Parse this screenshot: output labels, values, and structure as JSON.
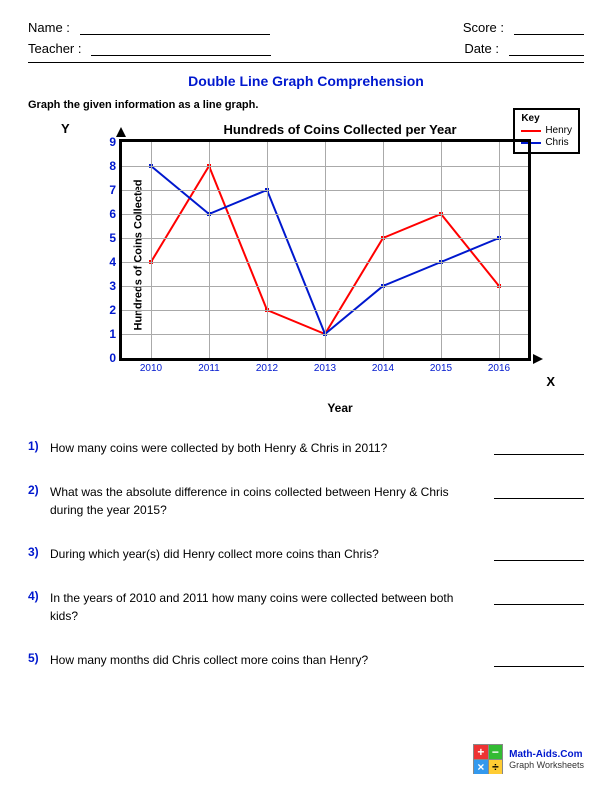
{
  "header": {
    "name_label": "Name :",
    "teacher_label": "Teacher :",
    "score_label": "Score :",
    "date_label": "Date :"
  },
  "title": "Double Line Graph Comprehension",
  "instruction": "Graph the given information as a line graph.",
  "legend": {
    "title": "Key",
    "series": [
      {
        "label": "Henry",
        "color": "#ff0000"
      },
      {
        "label": "Chris",
        "color": "#0018ce"
      }
    ]
  },
  "chart": {
    "type": "line",
    "title": "Hundreds of Coins Collected per Year",
    "xlabel": "Year",
    "ylabel": "Hundreds of Coins Collected",
    "y_axis_letter": "Y",
    "x_axis_letter": "X",
    "ylim": [
      0,
      9
    ],
    "ytick_step": 1,
    "yticks": [
      0,
      1,
      2,
      3,
      4,
      5,
      6,
      7,
      8,
      9
    ],
    "categories": [
      "2010",
      "2011",
      "2012",
      "2013",
      "2014",
      "2015",
      "2016"
    ],
    "grid_color": "#aaaaaa",
    "border_color": "#000000",
    "border_width": 3,
    "background_color": "#ffffff",
    "tick_color": "#0018ce",
    "marker_size": 4,
    "line_width": 2,
    "series": [
      {
        "name": "Henry",
        "color": "#ff0000",
        "values": [
          4,
          8,
          2,
          1,
          5,
          6,
          3
        ]
      },
      {
        "name": "Chris",
        "color": "#0018ce",
        "values": [
          8,
          6,
          7,
          1,
          3,
          4,
          5
        ]
      }
    ]
  },
  "questions": [
    {
      "num": "1)",
      "text": "How many coins were collected by both Henry & Chris in 2011?"
    },
    {
      "num": "2)",
      "text": "What was the absolute difference in coins collected between Henry & Chris during the year 2015?"
    },
    {
      "num": "3)",
      "text": "During which year(s) did Henry collect more coins than Chris?"
    },
    {
      "num": "4)",
      "text": "In the years of 2010 and 2011 how many coins were collected between both kids?"
    },
    {
      "num": "5)",
      "text": "How many months did Chris collect more coins than Henry?"
    }
  ],
  "footer": {
    "site": "Math-Aids.Com",
    "sub": "Graph Worksheets"
  }
}
